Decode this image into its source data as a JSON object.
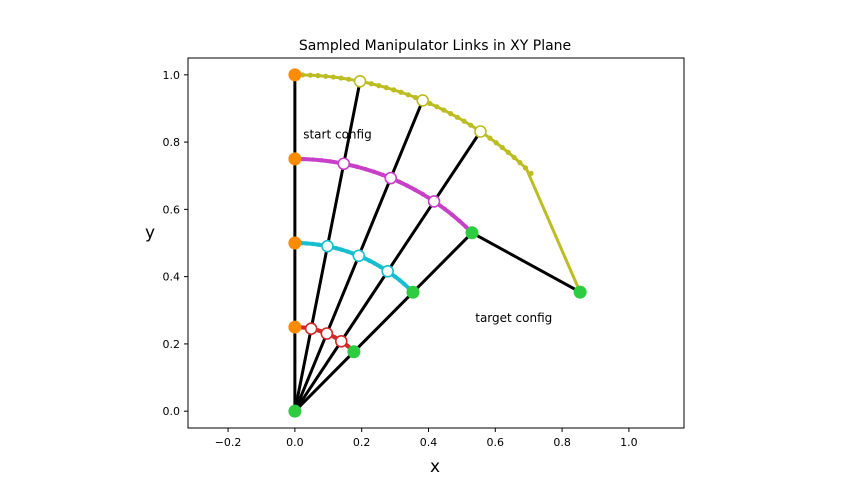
{
  "chart_data": {
    "type": "line",
    "title": "Sampled Manipulator Links in XY Plane",
    "xlabel": "x",
    "ylabel": "y",
    "xlim": [
      -0.32,
      1.165
    ],
    "ylim": [
      -0.05,
      1.05
    ],
    "xticks": [
      -0.2,
      0.0,
      0.2,
      0.4,
      0.6,
      0.8,
      1.0
    ],
    "xtick_labels": [
      "−0.2",
      "0.0",
      "0.2",
      "0.4",
      "0.6",
      "0.8",
      "1.0"
    ],
    "yticks": [
      0.0,
      0.2,
      0.4,
      0.6,
      0.8,
      1.0
    ],
    "ytick_labels": [
      "0.0",
      "0.2",
      "0.4",
      "0.6",
      "0.8",
      "1.0"
    ],
    "grid": false,
    "base": [
      0.0,
      0.0
    ],
    "joint_radii": [
      0.25,
      0.5,
      0.75,
      1.0
    ],
    "trajectory_colors": [
      "#d62728",
      "#17becf",
      "#c83fc8",
      "#bcbd22"
    ],
    "sampled_fractions": [
      0.25,
      0.5,
      0.75
    ],
    "start_angle_deg": 90,
    "target_angle_deg": 45,
    "target_tip": [
      0.854,
      0.354
    ],
    "start_color": "#ff8c00",
    "target_color": "#2ecc40",
    "annotations": [
      {
        "text": "start config",
        "x": 0.025,
        "y": 0.81
      },
      {
        "text": "target config",
        "x": 0.54,
        "y": 0.265
      }
    ]
  }
}
